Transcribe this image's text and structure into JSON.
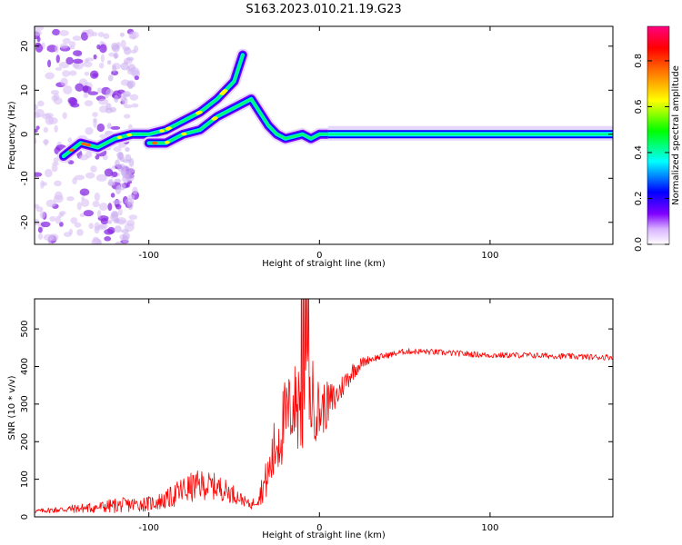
{
  "title": "S163.2023.010.21.19.G23",
  "chart_data": [
    {
      "type": "heatmap",
      "xlabel": "Height of straight line (km)",
      "ylabel": "Frequency (Hz)",
      "xlim": [
        -167,
        172
      ],
      "ylim": [
        -25,
        24.5
      ],
      "xticks": [
        -100,
        0,
        100
      ],
      "yticks": [
        -20,
        -10,
        0,
        10,
        20
      ],
      "colorbar": {
        "label": "Normalized spectral amplitude",
        "range": [
          0.0,
          0.95
        ],
        "ticks": [
          "0.0",
          "0.2",
          "0.4",
          "0.6",
          "0.8"
        ],
        "colors": [
          "#ffffff",
          "#8000ff",
          "#0000ff",
          "#00ffff",
          "#00ff00",
          "#ffff00",
          "#ff8000",
          "#ff0000",
          "#ff0080"
        ]
      },
      "ridges": [
        {
          "name": "",
          "x": [
            -150,
            -140,
            -130,
            -120,
            -110,
            -100,
            -90,
            -80,
            -70,
            -60,
            -50,
            -45
          ],
          "y": [
            -5,
            -2,
            -3,
            -1,
            0,
            0,
            1,
            3,
            5,
            8,
            12,
            18
          ]
        },
        {
          "name": "",
          "x": [
            -100,
            -90,
            -80,
            -70,
            -60,
            -50,
            -45,
            -40,
            -35,
            -30,
            -25,
            -20,
            -10,
            -5,
            0,
            10,
            50,
            100,
            172
          ],
          "y": [
            -2,
            -2,
            0,
            1,
            4,
            6,
            7,
            8,
            5,
            2,
            0,
            -1,
            0,
            -1,
            0,
            0,
            0,
            0,
            0
          ]
        }
      ]
    },
    {
      "type": "line",
      "xlabel": "Height of straight line (km)",
      "ylabel": "SNR (10 * v/v)",
      "xlim": [
        -167,
        172
      ],
      "ylim": [
        0,
        580
      ],
      "xticks": [
        -100,
        0,
        100
      ],
      "yticks": [
        0,
        100,
        200,
        300,
        400,
        500
      ],
      "series": [
        {
          "color": "#ff0000",
          "x": [
            -167,
            -150,
            -130,
            -120,
            -100,
            -90,
            -80,
            -70,
            -60,
            -50,
            -45,
            -40,
            -35,
            -30,
            -25,
            -20,
            -15,
            -10,
            -5,
            0,
            5,
            10,
            15,
            20,
            25,
            30,
            40,
            50,
            60,
            80,
            100,
            120,
            140,
            160,
            172
          ],
          "y": [
            15,
            20,
            25,
            30,
            35,
            45,
            70,
            85,
            80,
            60,
            45,
            30,
            60,
            110,
            200,
            260,
            300,
            310,
            320,
            280,
            300,
            320,
            360,
            390,
            410,
            420,
            430,
            440,
            440,
            435,
            430,
            430,
            428,
            425,
            425
          ],
          "amp": [
            5,
            10,
            15,
            20,
            20,
            25,
            40,
            40,
            35,
            25,
            15,
            10,
            30,
            60,
            100,
            110,
            100,
            200,
            120,
            80,
            60,
            40,
            30,
            25,
            15,
            10,
            8,
            8,
            8,
            8,
            8,
            8,
            8,
            8,
            8
          ]
        }
      ]
    }
  ]
}
